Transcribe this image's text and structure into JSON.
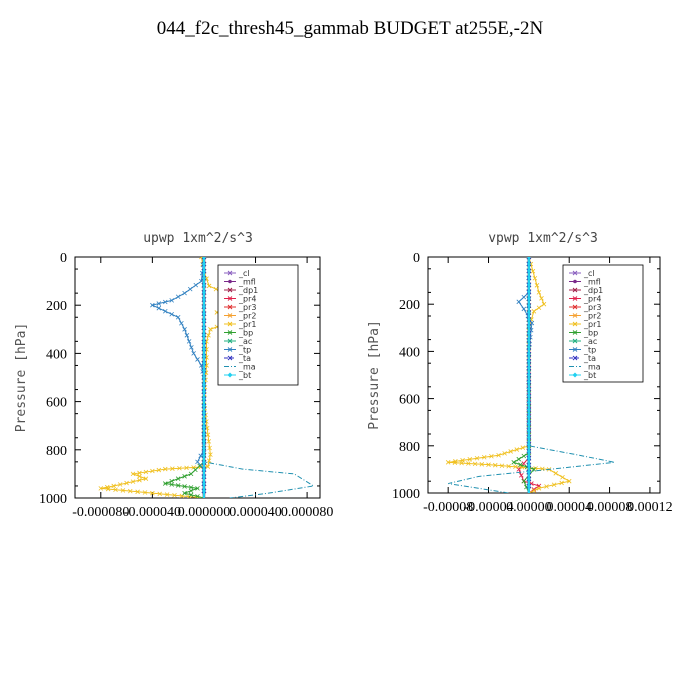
{
  "figure": {
    "title": "044_f2c_thresh45_gammab  BUDGET at255E,-2N"
  },
  "chart_data": [
    {
      "type": "line",
      "title": "upwp   1xm^2/s^3",
      "ylabel": "Pressure  [hPa]",
      "xlim": [
        -0.0001,
        9e-05
      ],
      "ylim": [
        1000,
        0
      ],
      "x_ticks": [
        -8e-05,
        -4e-05,
        0.0,
        4e-05,
        8e-05
      ],
      "x_tick_labels": [
        "-0.000080",
        "-0.000040",
        "0.000000",
        "0.000040",
        "0.000080"
      ],
      "y_ticks": [
        0,
        200,
        400,
        600,
        800,
        1000
      ],
      "y_tick_labels": [
        "0",
        "200",
        "400",
        "600",
        "800",
        "1000"
      ],
      "legend_position": "top-right",
      "series": [
        {
          "name": "_cl",
          "color": "#8a5fbf",
          "marker": "x",
          "dash": "none",
          "points": [
            [
              0,
              0
            ],
            [
              0,
              1000
            ]
          ]
        },
        {
          "name": "_mfl",
          "color": "#7a2a8a",
          "marker": "o",
          "dash": "none",
          "points": [
            [
              0,
              0
            ],
            [
              0,
              1000
            ]
          ]
        },
        {
          "name": "_dp1",
          "color": "#a0204a",
          "marker": "x",
          "dash": "none",
          "points": [
            [
              0,
              0
            ],
            [
              0,
              1000
            ]
          ]
        },
        {
          "name": "_pr4",
          "color": "#e0204a",
          "marker": "x",
          "dash": "none",
          "points": [
            [
              0,
              0
            ],
            [
              0,
              1000
            ]
          ]
        },
        {
          "name": "_pr3",
          "color": "#e03030",
          "marker": "x",
          "dash": "none",
          "points": [
            [
              0,
              0
            ],
            [
              0,
              1000
            ]
          ]
        },
        {
          "name": "_pr2",
          "color": "#f5a030",
          "marker": "x",
          "dash": "none",
          "points": [
            [
              0,
              0
            ],
            [
              0,
              1000
            ]
          ]
        },
        {
          "name": "_pr1",
          "color": "#f0c020",
          "marker": "x",
          "dash": "none",
          "points": [
            [
              -2e-06,
              0
            ],
            [
              0,
              60
            ],
            [
              4e-06,
              120
            ],
            [
              2e-05,
              160
            ],
            [
              1.5e-05,
              200
            ],
            [
              3e-05,
              190
            ],
            [
              1e-05,
              230
            ],
            [
              2.5e-05,
              260
            ],
            [
              5e-06,
              300
            ],
            [
              2e-06,
              350
            ],
            [
              2e-06,
              450
            ],
            [
              0,
              600
            ],
            [
              5e-06,
              820
            ],
            [
              3e-06,
              870
            ],
            [
              -3e-05,
              880
            ],
            [
              -5.5e-05,
              900
            ],
            [
              -4.5e-05,
              920
            ],
            [
              -7e-05,
              950
            ],
            [
              -8e-05,
              960
            ],
            [
              -4e-05,
              980
            ],
            [
              0,
              1000
            ]
          ]
        },
        {
          "name": "_bp",
          "color": "#30a030",
          "marker": "x",
          "dash": "none",
          "points": [
            [
              0,
              0
            ],
            [
              0,
              850
            ],
            [
              -1e-05,
              900
            ],
            [
              -3e-05,
              940
            ],
            [
              -5e-06,
              960
            ],
            [
              -1.5e-05,
              980
            ],
            [
              0,
              1000
            ]
          ]
        },
        {
          "name": "_ac",
          "color": "#20b080",
          "marker": "x",
          "dash": "none",
          "points": [
            [
              0,
              0
            ],
            [
              0,
              1000
            ]
          ]
        },
        {
          "name": "_tp",
          "color": "#3080c0",
          "marker": "x",
          "dash": "none",
          "points": [
            [
              0,
              0
            ],
            [
              -2e-06,
              100
            ],
            [
              -1.5e-05,
              150
            ],
            [
              -2.5e-05,
              180
            ],
            [
              -4e-05,
              200
            ],
            [
              -2e-05,
              250
            ],
            [
              -1.5e-05,
              300
            ],
            [
              -8e-06,
              400
            ],
            [
              -2e-06,
              450
            ],
            [
              0,
              500
            ],
            [
              0,
              800
            ],
            [
              -5e-06,
              850
            ],
            [
              0,
              880
            ],
            [
              0,
              1000
            ]
          ]
        },
        {
          "name": "_ta",
          "color": "#3030c0",
          "marker": "x",
          "dash": "4,2",
          "points": [
            [
              0,
              0
            ],
            [
              0,
              1000
            ]
          ]
        },
        {
          "name": "_ma",
          "color": "#2090b0",
          "marker": "none",
          "dash": "5,2,1,2",
          "points": [
            [
              0,
              0
            ],
            [
              0,
              850
            ],
            [
              3e-05,
              880
            ],
            [
              7e-05,
              900
            ],
            [
              8.5e-05,
              950
            ],
            [
              5e-05,
              980
            ],
            [
              2e-05,
              1000
            ]
          ]
        },
        {
          "name": "_bt",
          "color": "#20d0f0",
          "marker": "diamond",
          "dash": "none",
          "points": [
            [
              0,
              0
            ],
            [
              0,
              1000
            ]
          ]
        }
      ]
    },
    {
      "type": "line",
      "title": "vpwp   1xm^2/s^3",
      "ylabel": "Pressure  [hPa]",
      "xlim": [
        -0.0001,
        0.00013
      ],
      "ylim": [
        1000,
        0
      ],
      "x_ticks": [
        -8e-05,
        -4e-05,
        0.0,
        4e-05,
        8e-05,
        0.00012
      ],
      "x_tick_labels": [
        "-0.00008",
        "-0.00004",
        "0.00000",
        "0.00004",
        "0.00008",
        "0.00012"
      ],
      "y_ticks": [
        0,
        200,
        400,
        600,
        800,
        1000
      ],
      "y_tick_labels": [
        "0",
        "200",
        "400",
        "600",
        "800",
        "1000"
      ],
      "legend_position": "top-right",
      "series": [
        {
          "name": "_cl",
          "color": "#8a5fbf",
          "marker": "x",
          "dash": "none",
          "points": [
            [
              0,
              0
            ],
            [
              0,
              1000
            ]
          ]
        },
        {
          "name": "_mfl",
          "color": "#7a2a8a",
          "marker": "o",
          "dash": "none",
          "points": [
            [
              0,
              0
            ],
            [
              0,
              1000
            ]
          ]
        },
        {
          "name": "_dp1",
          "color": "#a0204a",
          "marker": "x",
          "dash": "none",
          "points": [
            [
              0,
              0
            ],
            [
              0,
              1000
            ]
          ]
        },
        {
          "name": "_pr4",
          "color": "#e0204a",
          "marker": "x",
          "dash": "none",
          "points": [
            [
              0,
              0
            ],
            [
              0,
              850
            ],
            [
              -1e-05,
              900
            ],
            [
              -5e-06,
              950
            ],
            [
              1e-05,
              970
            ],
            [
              0,
              1000
            ]
          ]
        },
        {
          "name": "_pr3",
          "color": "#e03030",
          "marker": "x",
          "dash": "none",
          "points": [
            [
              0,
              0
            ],
            [
              0,
              1000
            ]
          ]
        },
        {
          "name": "_pr2",
          "color": "#f5a030",
          "marker": "x",
          "dash": "none",
          "points": [
            [
              0,
              0
            ],
            [
              0,
              1000
            ]
          ]
        },
        {
          "name": "_pr1",
          "color": "#f0c020",
          "marker": "x",
          "dash": "none",
          "points": [
            [
              0,
              0
            ],
            [
              1e-05,
              150
            ],
            [
              1.5e-05,
              200
            ],
            [
              5e-06,
              230
            ],
            [
              0,
              300
            ],
            [
              0,
              800
            ],
            [
              -3e-05,
              840
            ],
            [
              -8e-05,
              870
            ],
            [
              -4e-05,
              880
            ],
            [
              2e-05,
              900
            ],
            [
              4e-05,
              950
            ],
            [
              1e-05,
              980
            ],
            [
              0,
              1000
            ]
          ]
        },
        {
          "name": "_bp",
          "color": "#30a030",
          "marker": "x",
          "dash": "none",
          "points": [
            [
              0,
              0
            ],
            [
              0,
              830
            ],
            [
              -1.5e-05,
              870
            ],
            [
              5e-06,
              900
            ],
            [
              -5e-06,
              950
            ],
            [
              0,
              1000
            ]
          ]
        },
        {
          "name": "_ac",
          "color": "#20b080",
          "marker": "x",
          "dash": "none",
          "points": [
            [
              0,
              0
            ],
            [
              0,
              1000
            ]
          ]
        },
        {
          "name": "_tp",
          "color": "#3080c0",
          "marker": "x",
          "dash": "none",
          "points": [
            [
              0,
              0
            ],
            [
              0,
              150
            ],
            [
              -1e-05,
              190
            ],
            [
              -5e-06,
              220
            ],
            [
              3e-06,
              280
            ],
            [
              0,
              400
            ],
            [
              0,
              1000
            ]
          ]
        },
        {
          "name": "_ta",
          "color": "#3030c0",
          "marker": "x",
          "dash": "4,2",
          "points": [
            [
              0,
              0
            ],
            [
              0,
              1000
            ]
          ]
        },
        {
          "name": "_ma",
          "color": "#2090b0",
          "marker": "none",
          "dash": "5,2,1,2",
          "points": [
            [
              0,
              0
            ],
            [
              0,
              800
            ],
            [
              5e-05,
              840
            ],
            [
              8.5e-05,
              870
            ],
            [
              2e-05,
              900
            ],
            [
              -5e-05,
              930
            ],
            [
              -8e-05,
              960
            ],
            [
              -5e-05,
              980
            ],
            [
              -2e-05,
              1000
            ]
          ]
        },
        {
          "name": "_bt",
          "color": "#20d0f0",
          "marker": "diamond",
          "dash": "none",
          "points": [
            [
              0,
              0
            ],
            [
              0,
              1000
            ]
          ]
        }
      ]
    }
  ]
}
